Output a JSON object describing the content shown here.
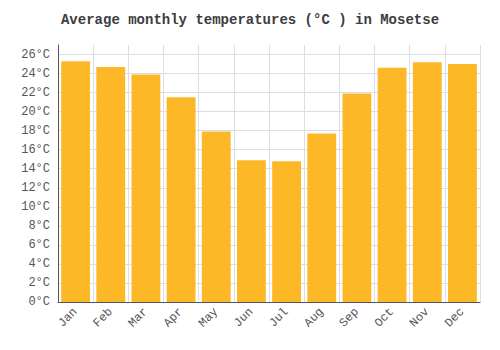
{
  "chart_data": {
    "type": "bar",
    "title": "Average monthly temperatures (°C ) in Mosetse",
    "categories": [
      "Jan",
      "Feb",
      "Mar",
      "Apr",
      "May",
      "Jun",
      "Jul",
      "Aug",
      "Sep",
      "Oct",
      "Nov",
      "Dec"
    ],
    "values": [
      25.3,
      24.7,
      23.9,
      21.5,
      17.9,
      14.9,
      14.8,
      17.7,
      21.9,
      24.6,
      25.2,
      25.0
    ],
    "color": "#FDB827",
    "ylim": [
      0,
      27
    ],
    "yticks": [
      {
        "value": 0,
        "label": "0°C"
      },
      {
        "value": 2,
        "label": "2°C"
      },
      {
        "value": 4,
        "label": "4°C"
      },
      {
        "value": 6,
        "label": "6°C"
      },
      {
        "value": 8,
        "label": "8°C"
      },
      {
        "value": 10,
        "label": "10°C"
      },
      {
        "value": 12,
        "label": "12°C"
      },
      {
        "value": 14,
        "label": "14°C"
      },
      {
        "value": 16,
        "label": "16°C"
      },
      {
        "value": 18,
        "label": "18°C"
      },
      {
        "value": 20,
        "label": "20°C"
      },
      {
        "value": 22,
        "label": "22°C"
      },
      {
        "value": 24,
        "label": "24°C"
      },
      {
        "value": 26,
        "label": "26°C"
      }
    ],
    "grid": true
  }
}
